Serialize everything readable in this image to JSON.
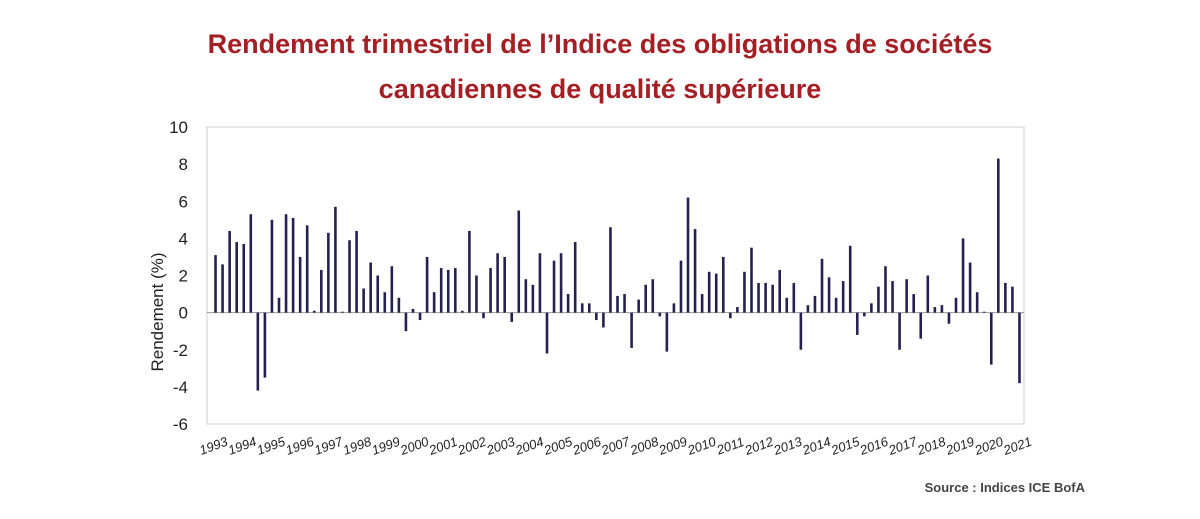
{
  "title_line1": "Rendement trimestriel de l’Indice des obligations de sociétés",
  "title_line2": "canadiennes de qualité supérieure",
  "source": "Source : Indices ICE BofA",
  "colors": {
    "title": "#a41f24",
    "bar": "#23214f",
    "axis": "#cfcfcf",
    "zero": "#999999"
  },
  "chart_data": {
    "type": "bar",
    "title": "Rendement trimestriel de l’Indice des obligations de sociétés canadiennes de qualité supérieure",
    "xlabel": "",
    "ylabel": "Rendement (%)",
    "ylim": [
      -6,
      10
    ],
    "yticks": [
      10,
      8,
      6,
      4,
      2,
      0,
      -2,
      -4,
      -6
    ],
    "grid": false,
    "year_labels": [
      "1993",
      "1994",
      "1995",
      "1996",
      "1997",
      "1998",
      "1999",
      "2000",
      "2001",
      "2002",
      "2003",
      "2004",
      "2005",
      "2006",
      "2007",
      "2008",
      "2009",
      "2010",
      "2011",
      "2012",
      "2013",
      "2014",
      "2015",
      "2016",
      "2017",
      "2018",
      "2019",
      "2020",
      "2021"
    ],
    "series": [
      {
        "values": [
          3.1,
          2.6,
          4.4,
          3.8,
          3.7,
          5.3,
          -4.2,
          -3.5,
          5.0,
          0.8,
          5.3,
          5.1,
          3.0,
          4.7,
          0.1,
          2.3,
          4.3,
          5.7,
          0.05,
          3.9,
          4.4,
          1.3,
          2.7,
          2.0,
          1.1,
          2.5,
          0.8,
          -1.0,
          0.2,
          -0.4,
          3.0,
          1.1,
          2.4,
          2.3,
          2.4,
          0.1,
          4.4,
          2.0,
          -0.3,
          2.4,
          3.2,
          3.0,
          -0.5,
          5.5,
          1.8,
          1.5,
          3.2,
          -2.2,
          2.8,
          3.2,
          1.0,
          3.8,
          0.5,
          0.5,
          -0.4,
          -0.8,
          4.6,
          0.9,
          1.0,
          -1.9,
          0.7,
          1.5,
          1.8,
          -0.2,
          -2.1,
          0.5,
          2.8,
          6.2,
          4.5,
          1.0,
          2.2,
          2.1,
          3.0,
          -0.3,
          0.3,
          2.2,
          3.5,
          1.6,
          1.6,
          1.5,
          2.3,
          0.8,
          1.6,
          -2.0,
          0.4,
          0.9,
          2.9,
          1.9,
          0.8,
          1.7,
          3.6,
          -1.2,
          -0.2,
          0.5,
          1.4,
          2.5,
          1.7,
          -2.0,
          1.8,
          1.0,
          -1.4,
          2.0,
          0.3,
          0.4,
          -0.6,
          0.8,
          4.0,
          2.7,
          1.1,
          0.05,
          -2.8,
          8.3,
          1.6,
          1.4,
          -3.8
        ]
      }
    ]
  }
}
